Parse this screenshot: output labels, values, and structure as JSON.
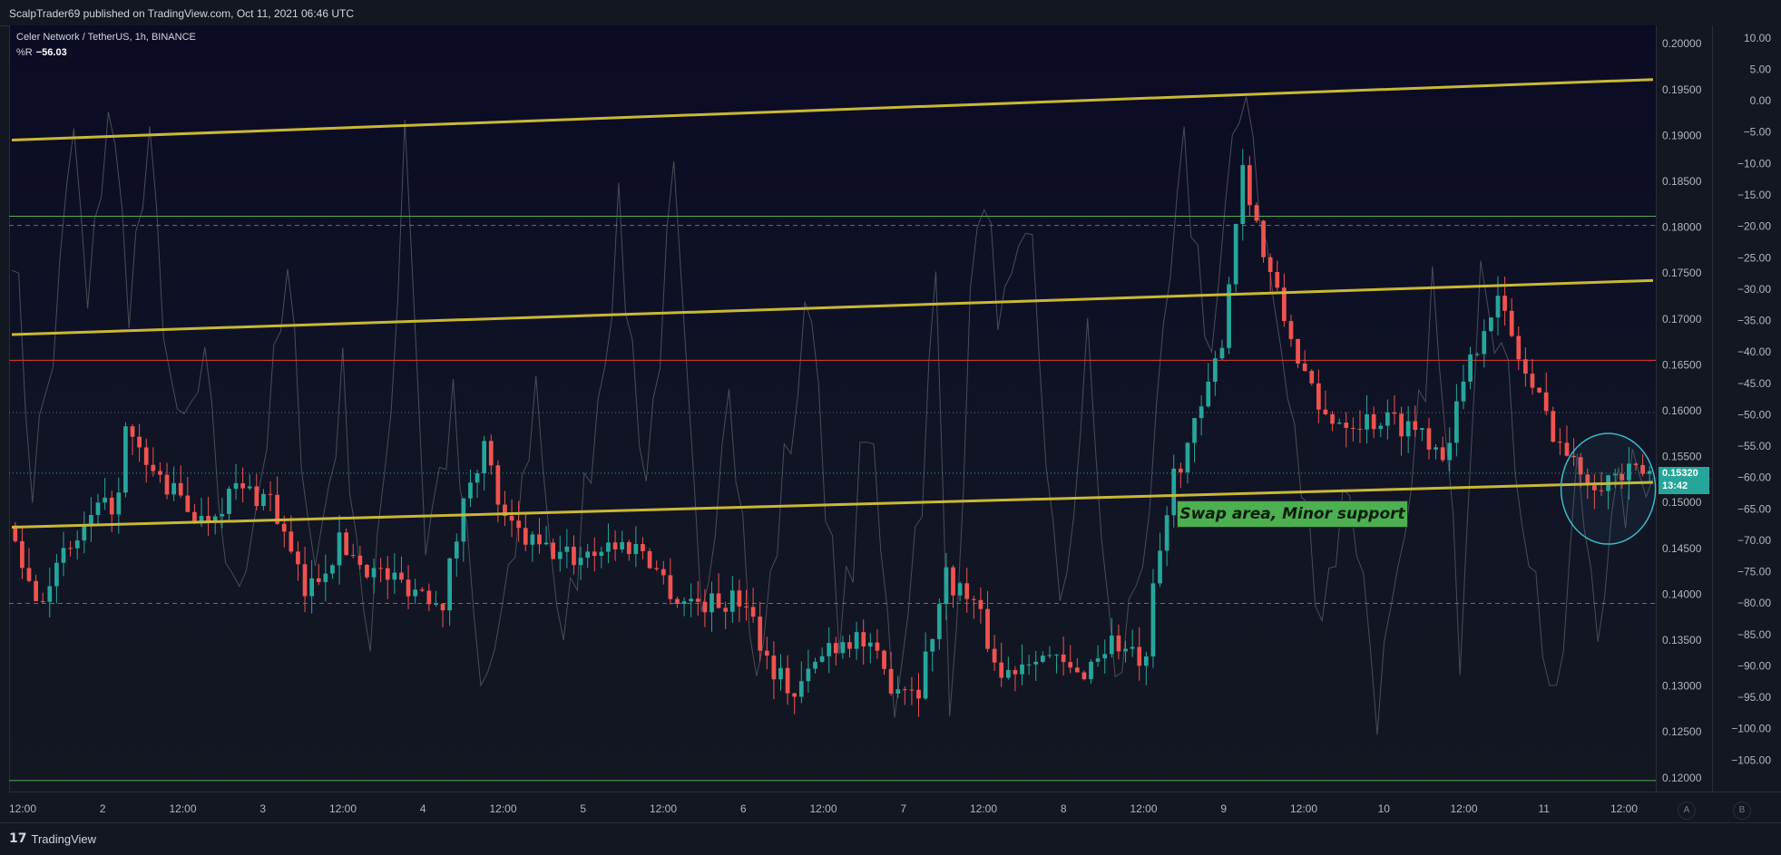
{
  "header": {
    "publisher_text": "ScalpTrader69 published on TradingView.com, Oct 11, 2021 06:46 UTC"
  },
  "symbol": {
    "title": "Celer Network / TetherUS, 1h, BINANCE",
    "indicator_name": "%R",
    "indicator_value": "−56.03"
  },
  "price_tag": {
    "price": "0.15320",
    "countdown": "13:42"
  },
  "annotation": {
    "text": "Swap area, Minor support"
  },
  "footer": {
    "brand": "TradingView",
    "button_a": "A",
    "button_b": "B"
  },
  "colors": {
    "up": "#26a69a",
    "down": "#ef5350",
    "trendline": "#c9b837",
    "support_green": "#4caf50",
    "resistance_red": "#e53935",
    "oscillator": "#4a4d57",
    "annotation_bg": "#4caf50",
    "circle": "#3fb8c6"
  },
  "chart_data": {
    "type": "candlestick",
    "title": "Celer Network / TetherUS, 1h, BINANCE",
    "price_axis": {
      "ticks": [
        "0.20000",
        "0.19500",
        "0.19000",
        "0.18500",
        "0.18000",
        "0.17500",
        "0.17000",
        "0.16500",
        "0.16000",
        "0.15500",
        "0.15000",
        "0.14500",
        "0.14000",
        "0.13500",
        "0.13000",
        "0.12500",
        "0.12000"
      ],
      "range": [
        0.1185,
        0.202
      ]
    },
    "oscillator_axis": {
      "ticks": [
        "10.00",
        "5.00",
        "0.00",
        "−5.00",
        "−10.00",
        "−15.00",
        "−20.00",
        "−25.00",
        "−30.00",
        "−35.00",
        "−40.00",
        "−45.00",
        "−50.00",
        "−55.00",
        "−60.00",
        "−65.00",
        "−70.00",
        "−75.00",
        "−80.00",
        "−85.00",
        "−90.00",
        "−95.00",
        "−100.00",
        "−105.00"
      ],
      "range": [
        -110,
        12
      ]
    },
    "time_axis": {
      "ticks": [
        "12:00",
        "2",
        "12:00",
        "3",
        "12:00",
        "4",
        "12:00",
        "5",
        "12:00",
        "6",
        "12:00",
        "7",
        "12:00",
        "8",
        "12:00",
        "9",
        "12:00",
        "10",
        "12:00",
        "11",
        "12:00"
      ],
      "bars": 238
    },
    "horizontal_levels": [
      {
        "price": 0.1812,
        "style": "solid",
        "color": "green"
      },
      {
        "price": 0.1802,
        "style": "dashed",
        "color": "grey"
      },
      {
        "price": 0.1655,
        "style": "solid",
        "color": "red"
      },
      {
        "price": 0.1598,
        "style": "dotted",
        "color": "grey"
      },
      {
        "price": 0.1532,
        "style": "dotted",
        "color": "teal"
      },
      {
        "price": 0.139,
        "style": "dashed",
        "color": "grey"
      },
      {
        "price": 0.1197,
        "style": "solid",
        "color": "green"
      }
    ],
    "trendlines": [
      {
        "start": {
          "bar": 0,
          "price": 0.1895
        },
        "end": {
          "bar": 238,
          "price": 0.1961
        }
      },
      {
        "start": {
          "bar": 0,
          "price": 0.1683
        },
        "end": {
          "bar": 238,
          "price": 0.1742
        }
      },
      {
        "start": {
          "bar": 0,
          "price": 0.1473
        },
        "end": {
          "bar": 238,
          "price": 0.1522
        }
      }
    ],
    "price_anchors": [
      [
        0,
        0.1475
      ],
      [
        4,
        0.1395
      ],
      [
        12,
        0.148
      ],
      [
        16,
        0.1505
      ],
      [
        17,
        0.1575
      ],
      [
        20,
        0.154
      ],
      [
        24,
        0.151
      ],
      [
        28,
        0.148
      ],
      [
        33,
        0.1515
      ],
      [
        38,
        0.1505
      ],
      [
        43,
        0.14
      ],
      [
        48,
        0.1455
      ],
      [
        53,
        0.1425
      ],
      [
        58,
        0.141
      ],
      [
        63,
        0.1395
      ],
      [
        67,
        0.153
      ],
      [
        69,
        0.156
      ],
      [
        72,
        0.1475
      ],
      [
        77,
        0.145
      ],
      [
        82,
        0.144
      ],
      [
        87,
        0.1455
      ],
      [
        92,
        0.145
      ],
      [
        97,
        0.1395
      ],
      [
        102,
        0.139
      ],
      [
        107,
        0.1395
      ],
      [
        110,
        0.133
      ],
      [
        114,
        0.129
      ],
      [
        119,
        0.1345
      ],
      [
        123,
        0.1355
      ],
      [
        128,
        0.1305
      ],
      [
        132,
        0.13
      ],
      [
        136,
        0.142
      ],
      [
        140,
        0.139
      ],
      [
        144,
        0.131
      ],
      [
        149,
        0.134
      ],
      [
        155,
        0.131
      ],
      [
        160,
        0.135
      ],
      [
        165,
        0.132
      ],
      [
        166,
        0.14
      ],
      [
        169,
        0.153
      ],
      [
        172,
        0.158
      ],
      [
        174,
        0.162
      ],
      [
        176,
        0.168
      ],
      [
        179,
        0.187
      ],
      [
        182,
        0.177
      ],
      [
        185,
        0.17
      ],
      [
        188,
        0.164
      ],
      [
        190,
        0.1595
      ],
      [
        195,
        0.159
      ],
      [
        200,
        0.159
      ],
      [
        205,
        0.158
      ],
      [
        208,
        0.1555
      ],
      [
        211,
        0.1625
      ],
      [
        214,
        0.17
      ],
      [
        216,
        0.172
      ],
      [
        220,
        0.164
      ],
      [
        224,
        0.158
      ],
      [
        227,
        0.154
      ],
      [
        230,
        0.1525
      ],
      [
        238,
        0.1532
      ]
    ],
    "oscillator_anchors": [
      [
        0,
        -20
      ],
      [
        3,
        -60
      ],
      [
        6,
        -40
      ],
      [
        9,
        -5
      ],
      [
        11,
        -35
      ],
      [
        14,
        0
      ],
      [
        17,
        -30
      ],
      [
        20,
        -10
      ],
      [
        24,
        -55
      ],
      [
        28,
        -45
      ],
      [
        32,
        -80
      ],
      [
        36,
        -60
      ],
      [
        40,
        -30
      ],
      [
        44,
        -75
      ],
      [
        48,
        -45
      ],
      [
        52,
        -90
      ],
      [
        56,
        -30
      ],
      [
        57,
        0
      ],
      [
        60,
        -70
      ],
      [
        64,
        -50
      ],
      [
        68,
        -95
      ],
      [
        72,
        -80
      ],
      [
        76,
        -45
      ],
      [
        80,
        -90
      ],
      [
        84,
        -55
      ],
      [
        88,
        -20
      ],
      [
        92,
        -60
      ],
      [
        96,
        -15
      ],
      [
        100,
        -85
      ],
      [
        104,
        -40
      ],
      [
        108,
        -95
      ],
      [
        112,
        -60
      ],
      [
        116,
        -30
      ],
      [
        120,
        -90
      ],
      [
        124,
        -50
      ],
      [
        128,
        -95
      ],
      [
        132,
        -60
      ],
      [
        134,
        -30
      ],
      [
        136,
        -98
      ],
      [
        140,
        -15
      ],
      [
        144,
        -35
      ],
      [
        148,
        -25
      ],
      [
        152,
        -85
      ],
      [
        156,
        -40
      ],
      [
        160,
        -95
      ],
      [
        164,
        -70
      ],
      [
        166,
        -55
      ],
      [
        168,
        -30
      ],
      [
        170,
        -10
      ],
      [
        174,
        -40
      ],
      [
        176,
        -20
      ],
      [
        179,
        5
      ],
      [
        182,
        -25
      ],
      [
        186,
        -55
      ],
      [
        190,
        -80
      ],
      [
        194,
        -60
      ],
      [
        198,
        -95
      ],
      [
        202,
        -75
      ],
      [
        206,
        -30
      ],
      [
        210,
        -85
      ],
      [
        213,
        -20
      ],
      [
        216,
        -40
      ],
      [
        220,
        -70
      ],
      [
        224,
        -100
      ],
      [
        227,
        -60
      ],
      [
        230,
        -80
      ],
      [
        233,
        -65
      ],
      [
        238,
        -56
      ]
    ]
  }
}
